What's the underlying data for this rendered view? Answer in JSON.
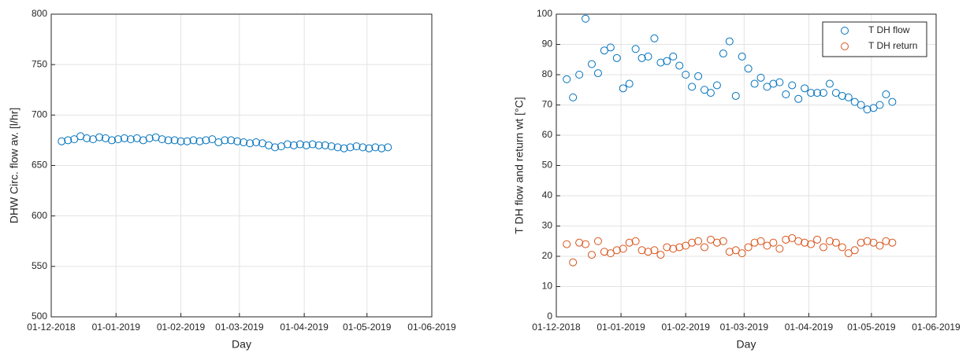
{
  "chart_data": [
    {
      "type": "scatter",
      "xlabel": "Day",
      "ylabel": "DHW Circ. flow av. [l/hr]",
      "x": [
        "06-12-2018",
        "09-12-2018",
        "12-12-2018",
        "15-12-2018",
        "18-12-2018",
        "21-12-2018",
        "24-12-2018",
        "27-12-2018",
        "30-12-2018",
        "02-01-2019",
        "05-01-2019",
        "08-01-2019",
        "11-01-2019",
        "14-01-2019",
        "17-01-2019",
        "20-01-2019",
        "23-01-2019",
        "26-01-2019",
        "29-01-2019",
        "01-02-2019",
        "04-02-2019",
        "07-02-2019",
        "10-02-2019",
        "13-02-2019",
        "16-02-2019",
        "19-02-2019",
        "22-02-2019",
        "25-02-2019",
        "28-02-2019",
        "03-03-2019",
        "06-03-2019",
        "09-03-2019",
        "12-03-2019",
        "15-03-2019",
        "18-03-2019",
        "21-03-2019",
        "24-03-2019",
        "27-03-2019",
        "30-03-2019",
        "02-04-2019",
        "05-04-2019",
        "08-04-2019",
        "11-04-2019",
        "14-04-2019",
        "17-04-2019",
        "20-04-2019",
        "23-04-2019",
        "26-04-2019",
        "29-04-2019",
        "02-05-2019",
        "05-05-2019",
        "08-05-2019",
        "11-05-2019"
      ],
      "series": [
        {
          "color": "#0072bd",
          "values": [
            674,
            675,
            676,
            679,
            677,
            676,
            678,
            677,
            675,
            676,
            677,
            676,
            677,
            675,
            677,
            678,
            676,
            675,
            675,
            674,
            674,
            675,
            674,
            675,
            676,
            673,
            675,
            675,
            674,
            673,
            672,
            673,
            672,
            670,
            668,
            669,
            671,
            670,
            671,
            670,
            671,
            670,
            670,
            669,
            668,
            667,
            668,
            669,
            668,
            667,
            668,
            667,
            668
          ]
        }
      ],
      "xlim": [
        "01-12-2018",
        "01-06-2019"
      ],
      "xticks": [
        "01-12-2018",
        "01-01-2019",
        "01-02-2019",
        "01-03-2019",
        "01-04-2019",
        "01-05-2019",
        "01-06-2019"
      ],
      "ylim": [
        500,
        800
      ],
      "yticks": [
        500,
        550,
        600,
        650,
        700,
        750,
        800
      ],
      "grid": true
    },
    {
      "type": "scatter",
      "xlabel": "Day",
      "ylabel": "T DH flow and return wt [°C]",
      "x": [
        "06-12-2018",
        "09-12-2018",
        "12-12-2018",
        "15-12-2018",
        "18-12-2018",
        "21-12-2018",
        "24-12-2018",
        "27-12-2018",
        "30-12-2018",
        "02-01-2019",
        "05-01-2019",
        "08-01-2019",
        "11-01-2019",
        "14-01-2019",
        "17-01-2019",
        "20-01-2019",
        "23-01-2019",
        "26-01-2019",
        "29-01-2019",
        "01-02-2019",
        "04-02-2019",
        "07-02-2019",
        "10-02-2019",
        "13-02-2019",
        "16-02-2019",
        "19-02-2019",
        "22-02-2019",
        "25-02-2019",
        "28-02-2019",
        "03-03-2019",
        "06-03-2019",
        "09-03-2019",
        "12-03-2019",
        "15-03-2019",
        "18-03-2019",
        "21-03-2019",
        "24-03-2019",
        "27-03-2019",
        "30-03-2019",
        "02-04-2019",
        "05-04-2019",
        "08-04-2019",
        "11-04-2019",
        "14-04-2019",
        "17-04-2019",
        "20-04-2019",
        "23-04-2019",
        "26-04-2019",
        "29-04-2019",
        "02-05-2019",
        "05-05-2019",
        "08-05-2019",
        "11-05-2019"
      ],
      "series": [
        {
          "name": "T DH flow",
          "color": "#0072bd",
          "values": [
            78.5,
            72.5,
            80,
            98.5,
            83.5,
            80.5,
            88,
            89,
            85.5,
            75.5,
            77,
            88.5,
            85.5,
            86,
            92,
            84,
            84.5,
            86,
            83,
            80,
            76,
            79.5,
            75,
            74,
            76.5,
            87,
            91,
            73,
            86,
            82,
            77,
            79,
            76,
            77,
            77.5,
            73.5,
            76.5,
            72,
            75.5,
            74,
            74,
            74,
            77,
            74,
            73,
            72.5,
            71,
            70,
            68.5,
            69,
            70,
            73.5,
            71
          ]
        },
        {
          "name": "T DH return",
          "color": "#d95319",
          "values": [
            24,
            18,
            24.5,
            24,
            20.5,
            25,
            21.5,
            21,
            22,
            22.5,
            24.5,
            25,
            22,
            21.5,
            22,
            20.5,
            23,
            22.5,
            23,
            23.5,
            24.5,
            25,
            23,
            25.5,
            24.5,
            25,
            21.5,
            22,
            21,
            23,
            24.5,
            25,
            23.5,
            24.5,
            22.5,
            25.5,
            26,
            25,
            24.5,
            24,
            25.5,
            23,
            25,
            24.5,
            23,
            21,
            22,
            24.5,
            25,
            24.5,
            23.5,
            25,
            24.5
          ]
        }
      ],
      "xlim": [
        "01-12-2018",
        "01-06-2019"
      ],
      "xticks": [
        "01-12-2018",
        "01-01-2019",
        "01-02-2019",
        "01-03-2019",
        "01-04-2019",
        "01-05-2019",
        "01-06-2019"
      ],
      "ylim": [
        0,
        100
      ],
      "yticks": [
        0,
        10,
        20,
        30,
        40,
        50,
        60,
        70,
        80,
        90,
        100
      ],
      "grid": true,
      "legend": "northeast"
    }
  ]
}
